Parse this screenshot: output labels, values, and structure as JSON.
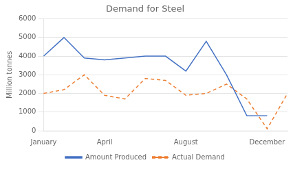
{
  "chart_data": {
    "type": "line",
    "title": "Demand for Steel",
    "ylabel": "Million tonnes",
    "categories": [
      "January",
      null,
      null,
      "April",
      null,
      null,
      null,
      "August",
      null,
      null,
      null,
      "December",
      null
    ],
    "series": [
      {
        "name": "Amount Produced",
        "color": "#4472C4",
        "line_style": "solid",
        "values": [
          4000,
          5000,
          3900,
          3800,
          3900,
          4000,
          4000,
          3200,
          4800,
          3000,
          800,
          800,
          null
        ]
      },
      {
        "name": "Actual Demand",
        "color": "#ED7D31",
        "line_style": "dashed",
        "values": [
          2000,
          2200,
          3000,
          1900,
          1700,
          2800,
          2700,
          1900,
          2000,
          2500,
          1700,
          100,
          2000
        ]
      }
    ],
    "ylim": [
      0,
      6000
    ],
    "yticks": [
      0,
      1000,
      2000,
      3000,
      4000,
      5000,
      6000
    ],
    "grid": true,
    "legend": "bottom",
    "marker": "none"
  }
}
